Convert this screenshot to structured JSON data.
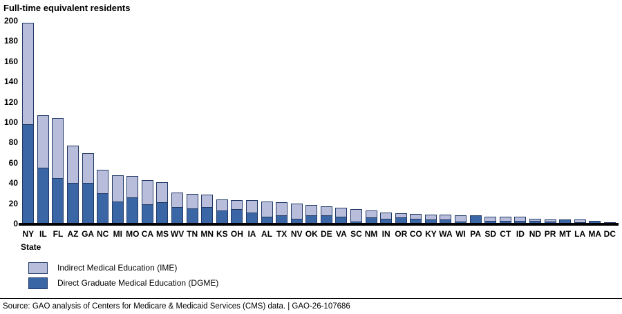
{
  "source_note": "Source: GAO analysis of Centers for Medicare & Medicaid Services (CMS) data.  |  GAO-26-107686",
  "chart_data": {
    "type": "bar",
    "stacked": true,
    "title": "Full-time equivalent residents",
    "xlabel": "State",
    "ylabel": "Full-time equivalent residents",
    "ylim": [
      0,
      200
    ],
    "y_ticks": [
      0,
      20,
      40,
      60,
      80,
      100,
      120,
      140,
      160,
      180,
      200
    ],
    "grid": false,
    "legend_position": "bottom-left",
    "axis_color": "#000000",
    "segment_border_color": "#1f3864",
    "categories": [
      "NY",
      "IL",
      "FL",
      "AZ",
      "GA",
      "NC",
      "MI",
      "MO",
      "CA",
      "MS",
      "WV",
      "TN",
      "MN",
      "KS",
      "OH",
      "IA",
      "AL",
      "TX",
      "NV",
      "OK",
      "DE",
      "VA",
      "SC",
      "NM",
      "IN",
      "OR",
      "CO",
      "KY",
      "WA",
      "WI",
      "PA",
      "SD",
      "CT",
      "ID",
      "ND",
      "PR",
      "MT",
      "LA",
      "MA",
      "DC"
    ],
    "series": [
      {
        "name": "Direct Graduate Medical Education (DGME)",
        "color": "#3b66a5",
        "values": [
          98,
          55,
          45,
          40,
          40,
          30,
          22,
          26,
          19,
          21,
          16,
          15,
          16,
          13,
          14,
          11,
          7,
          8,
          5,
          8,
          8,
          7,
          2,
          6,
          5,
          6,
          5,
          4,
          4,
          2,
          8,
          3,
          3,
          3,
          3,
          2,
          4,
          1,
          3,
          1
        ]
      },
      {
        "name": "Indirect Medical Education (IME)",
        "color": "#b7bddb",
        "values": [
          100,
          52,
          59,
          37,
          29,
          23,
          26,
          21,
          24,
          20,
          14,
          14,
          12,
          11,
          9,
          12,
          15,
          13,
          15,
          10,
          9,
          9,
          12,
          7,
          6,
          4,
          5,
          5,
          5,
          6,
          0,
          4,
          4,
          4,
          2,
          2,
          0,
          3,
          0,
          0
        ]
      }
    ]
  }
}
